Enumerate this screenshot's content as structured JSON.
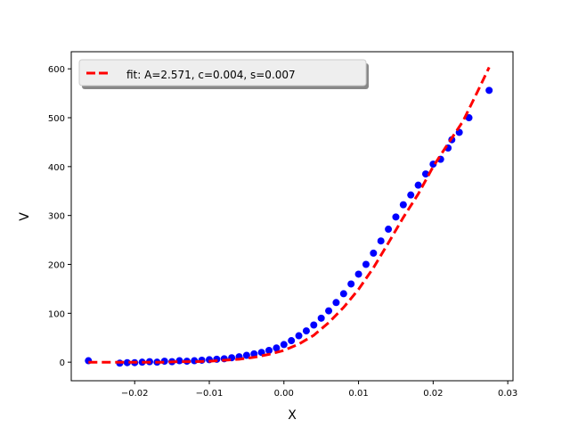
{
  "chart_data": {
    "type": "scatter",
    "title": "",
    "xlabel": "X",
    "ylabel": "V",
    "xlim": [
      -0.0285,
      0.0307
    ],
    "ylim": [
      -38,
      635
    ],
    "xticks": [
      -0.02,
      -0.01,
      0.0,
      0.01,
      0.02,
      0.03
    ],
    "xtick_labels": [
      "−0.02",
      "−0.01",
      "0.00",
      "0.01",
      "0.02",
      "0.03"
    ],
    "yticks": [
      0,
      100,
      200,
      300,
      400,
      500,
      600
    ],
    "ytick_labels": [
      "0",
      "100",
      "200",
      "300",
      "400",
      "500",
      "600"
    ],
    "grid": false,
    "legend_position": "top-left",
    "series": [
      {
        "kind": "scatter",
        "color": "#0000ff",
        "x": [
          -0.0262,
          -0.022,
          -0.021,
          -0.02,
          -0.019,
          -0.018,
          -0.017,
          -0.016,
          -0.015,
          -0.014,
          -0.013,
          -0.012,
          -0.011,
          -0.01,
          -0.009,
          -0.008,
          -0.007,
          -0.006,
          -0.005,
          -0.004,
          -0.003,
          -0.002,
          -0.001,
          0.0,
          0.001,
          0.002,
          0.003,
          0.004,
          0.005,
          0.006,
          0.007,
          0.008,
          0.009,
          0.01,
          0.011,
          0.012,
          0.013,
          0.014,
          0.015,
          0.016,
          0.017,
          0.018,
          0.019,
          0.02,
          0.021,
          0.022,
          0.0225,
          0.0235,
          0.0248,
          0.0275
        ],
        "y": [
          3,
          -2,
          -1,
          -1,
          0,
          1,
          0,
          2,
          1,
          3,
          2,
          3,
          4,
          5,
          6,
          7,
          9,
          11,
          14,
          17,
          20,
          24,
          29,
          36,
          44,
          54,
          64,
          76,
          90,
          105,
          122,
          140,
          160,
          180,
          200,
          223,
          248,
          272,
          297,
          322,
          342,
          362,
          385,
          405,
          415,
          438,
          455,
          470,
          500,
          556
        ]
      },
      {
        "kind": "line",
        "name": "fit: A=2.571, c=0.004, s=0.007",
        "color": "#ff0000",
        "dash": "dashed",
        "x": [
          -0.0262,
          -0.024,
          -0.022,
          -0.02,
          -0.018,
          -0.016,
          -0.014,
          -0.012,
          -0.01,
          -0.008,
          -0.006,
          -0.004,
          -0.002,
          0.0,
          0.002,
          0.004,
          0.006,
          0.008,
          0.01,
          0.012,
          0.014,
          0.016,
          0.018,
          0.02,
          0.022,
          0.024,
          0.026,
          0.0275
        ],
        "y": [
          0,
          0,
          0,
          0,
          0,
          0,
          1,
          1,
          2,
          4,
          6,
          10,
          16,
          24,
          37,
          55,
          81,
          112,
          149,
          193,
          244,
          296,
          344,
          400,
          447,
          493,
          555,
          603
        ]
      }
    ]
  }
}
